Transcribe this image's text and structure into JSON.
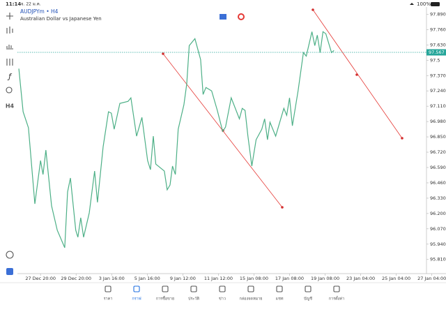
{
  "status_bar": {
    "time": "11:14",
    "date": "จ. 22 ม.ค.",
    "battery": "100%"
  },
  "toolbar": {
    "timeframe_button": "H4"
  },
  "chart_data": {
    "type": "line",
    "title": "AUDJPYm • H4",
    "subtitle": "Australian Dollar vs Japanese Yen",
    "x": [
      0.4,
      1.6,
      3.1,
      4.9,
      6.5,
      7.2,
      8.0,
      9.6,
      11.2,
      13.3,
      14.1,
      14.9,
      16.4,
      17.0,
      17.8,
      18.6,
      20.2,
      21.7,
      22.5,
      24.1,
      25.6,
      26.4,
      27.2,
      28.8,
      31.1,
      31.9,
      33.5,
      35.0,
      36.6,
      37.4,
      38.2,
      38.9,
      41.3,
      42.1,
      42.9,
      43.6,
      44.4,
      45.2,
      46.8,
      47.6,
      48.3,
      49.9,
      51.5,
      52.2,
      53.0,
      54.6,
      56.2,
      57.7,
      58.5,
      60.1,
      62.4,
      63.2,
      64.0,
      64.8,
      65.9,
      67.1,
      68.7,
      69.5,
      70.3,
      71.0,
      72.6,
      74.9,
      75.7,
      76.5,
      77.3,
      78.9,
      80.4,
      81.2,
      82.8,
      83.6,
      84.3,
      85.1,
      85.9,
      86.7,
      88.3,
      89.0
    ],
    "series": [
      {
        "name": "AUDJPYm",
        "color": "#4caf86",
        "values": [
          97.429,
          97.063,
          96.927,
          96.282,
          96.649,
          96.531,
          96.738,
          96.265,
          96.058,
          95.91,
          96.383,
          96.501,
          96.058,
          95.999,
          96.164,
          95.999,
          96.206,
          96.56,
          96.294,
          96.767,
          97.063,
          97.051,
          96.915,
          97.134,
          97.151,
          97.181,
          96.856,
          97.015,
          96.649,
          96.572,
          96.856,
          96.619,
          96.56,
          96.401,
          96.442,
          96.602,
          96.531,
          96.915,
          97.122,
          97.299,
          97.624,
          97.683,
          97.506,
          97.21,
          97.269,
          97.24,
          97.074,
          96.897,
          96.933,
          97.181,
          97.003,
          97.092,
          97.074,
          96.856,
          96.602,
          96.826,
          96.915,
          97.003,
          96.826,
          96.974,
          96.856,
          97.092,
          97.033,
          97.181,
          96.944,
          97.24,
          97.565,
          97.535,
          97.742,
          97.624,
          97.713,
          97.565,
          97.742,
          97.725,
          97.565,
          97.583
        ]
      }
    ],
    "xlim": [
      0,
      115
    ],
    "xticks": [
      {
        "value": 6.5,
        "label": "27 Dec 20:00"
      },
      {
        "value": 16.5,
        "label": "29 Dec 20:00"
      },
      {
        "value": 26.5,
        "label": "3 Jan 16:00"
      },
      {
        "value": 36.5,
        "label": "5 Jan 16:00"
      },
      {
        "value": 46.5,
        "label": "9 Jan 12:00"
      },
      {
        "value": 56.5,
        "label": "11 Jan 12:00"
      },
      {
        "value": 66.5,
        "label": "15 Jan 08:00"
      },
      {
        "value": 76.5,
        "label": "17 Jan 08:00"
      },
      {
        "value": 86.5,
        "label": "19 Jan 08:00"
      },
      {
        "value": 96.5,
        "label": "23 Jan 04:00"
      },
      {
        "value": 106.5,
        "label": "25 Jan 04:00"
      },
      {
        "value": 116.5,
        "label": "27 Jan 04:00"
      }
    ],
    "ylim": [
      95.69,
      97.94
    ],
    "yticks": [
      {
        "value": 97.89,
        "label": "97.890"
      },
      {
        "value": 97.76,
        "label": "97.760"
      },
      {
        "value": 97.63,
        "label": "97.630"
      },
      97.5,
      {
        "value": 97.37,
        "label": "97.370"
      },
      {
        "value": 97.24,
        "label": "97.240"
      },
      {
        "value": 97.11,
        "label": "97.110"
      },
      {
        "value": 96.98,
        "label": "96.980"
      },
      {
        "value": 96.85,
        "label": "96.850"
      },
      {
        "value": 96.72,
        "label": "96.720"
      },
      {
        "value": 96.59,
        "label": "96.590"
      },
      {
        "value": 96.46,
        "label": "96.460"
      },
      {
        "value": 96.33,
        "label": "96.330"
      },
      {
        "value": 96.2,
        "label": "96.200"
      },
      {
        "value": 96.07,
        "label": "96.070"
      },
      {
        "value": 95.94,
        "label": "95.940"
      },
      {
        "value": 95.81,
        "label": "95.810"
      }
    ],
    "last_price": 97.567,
    "last_price_color": "#26a69a"
  },
  "nav": [
    "ราคา",
    "กราฟ",
    "การซื้อขาย",
    "ประวัติ",
    "ข่าว",
    "กล่องจดหมาย",
    "แชท",
    "บัญชี",
    "การตั้งค่า"
  ]
}
